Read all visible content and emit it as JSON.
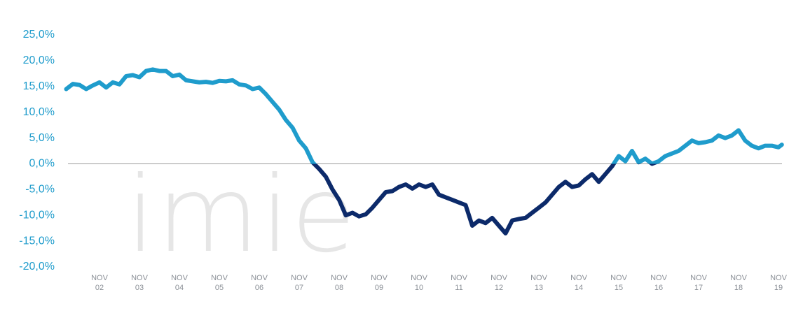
{
  "chart_data": {
    "type": "line",
    "watermark": "imie",
    "x": [
      -10,
      -8,
      -6,
      -4,
      -2,
      0,
      2,
      4,
      6,
      8,
      10,
      12,
      14,
      16,
      18,
      20,
      22,
      24,
      26,
      28,
      30,
      32,
      34,
      36,
      38,
      40,
      42,
      44,
      46,
      48,
      50,
      52,
      54,
      56,
      58,
      60,
      62,
      64,
      66,
      68,
      70,
      72,
      74,
      76,
      78,
      80,
      82,
      84,
      86,
      88,
      90,
      92,
      94,
      96,
      98,
      100,
      102,
      104,
      106,
      108,
      110,
      112,
      114,
      116,
      118,
      120,
      122,
      124,
      126,
      128,
      130,
      132,
      134,
      136,
      138,
      140,
      142,
      144,
      146,
      148,
      150,
      152,
      154,
      156,
      158,
      160,
      162,
      164,
      166,
      168,
      170,
      172,
      174,
      176,
      178,
      180,
      182,
      184,
      186,
      188,
      190,
      192,
      194,
      196,
      198,
      200,
      202,
      204,
      205
    ],
    "series": [
      {
        "positive_color": "#1f9ccc",
        "negative_color": "#0c2a6a",
        "values": [
          14.5,
          15.5,
          15.3,
          14.5,
          15.2,
          15.8,
          14.8,
          15.8,
          15.4,
          17,
          17.2,
          16.8,
          18,
          18.3,
          18,
          18,
          17,
          17.3,
          16.2,
          16,
          15.8,
          15.9,
          15.7,
          16.1,
          16,
          16.2,
          15.4,
          15.2,
          14.5,
          14.8,
          13.5,
          12,
          10.5,
          8.5,
          7,
          4.5,
          3,
          0.3,
          -1,
          -2.5,
          -5,
          -7,
          -10,
          -9.5,
          -10.2,
          -9.8,
          -8.5,
          -7,
          -5.5,
          -5.3,
          -4.5,
          -4,
          -4.8,
          -4,
          -4.5,
          -4,
          -6,
          -6.5,
          -7,
          -7.5,
          -8,
          -12,
          -11,
          -11.5,
          -10.5,
          -12,
          -13.5,
          -11,
          -10.7,
          -10.5,
          -9.5,
          -8.5,
          -7.5,
          -6,
          -4.5,
          -3.5,
          -4.5,
          -4.2,
          -3,
          -2,
          -3.5,
          -2,
          -0.5,
          1.5,
          0.5,
          2.5,
          0.3,
          1,
          0,
          0.5,
          1.5,
          2,
          2.5,
          3.5,
          4.5,
          4,
          4.2,
          4.5,
          5.5,
          5,
          5.5,
          6.5,
          4.5,
          3.5,
          3,
          3.5,
          3.5,
          3.2,
          3.7
        ]
      }
    ],
    "xlim": [
      -10,
      205
    ],
    "xticks": [
      {
        "value": 0,
        "label": [
          "NOV",
          "02"
        ]
      },
      {
        "value": 12,
        "label": [
          "NOV",
          "03"
        ]
      },
      {
        "value": 24,
        "label": [
          "NOV",
          "04"
        ]
      },
      {
        "value": 36,
        "label": [
          "NOV",
          "05"
        ]
      },
      {
        "value": 48,
        "label": [
          "NOV",
          "06"
        ]
      },
      {
        "value": 60,
        "label": [
          "NOV",
          "07"
        ]
      },
      {
        "value": 72,
        "label": [
          "NOV",
          "08"
        ]
      },
      {
        "value": 84,
        "label": [
          "NOV",
          "09"
        ]
      },
      {
        "value": 96,
        "label": [
          "NOV",
          "10"
        ]
      },
      {
        "value": 108,
        "label": [
          "NOV",
          "11"
        ]
      },
      {
        "value": 120,
        "label": [
          "NOV",
          "12"
        ]
      },
      {
        "value": 132,
        "label": [
          "NOV",
          "13"
        ]
      },
      {
        "value": 144,
        "label": [
          "NOV",
          "14"
        ]
      },
      {
        "value": 156,
        "label": [
          "NOV",
          "15"
        ]
      },
      {
        "value": 168,
        "label": [
          "NOV",
          "16"
        ]
      },
      {
        "value": 180,
        "label": [
          "NOV",
          "17"
        ]
      },
      {
        "value": 192,
        "label": [
          "NOV",
          "18"
        ]
      },
      {
        "value": 204,
        "label": [
          "NOV",
          "19"
        ]
      }
    ],
    "ylim": [
      -20,
      25
    ],
    "yticks": [
      {
        "value": -20,
        "label": "-20,0%"
      },
      {
        "value": -15,
        "label": "-15,0%"
      },
      {
        "value": -10,
        "label": "-10,0%"
      },
      {
        "value": -5,
        "label": "-5,0%"
      },
      {
        "value": 0,
        "label": "0,0%"
      },
      {
        "value": 5,
        "label": "5,0%"
      },
      {
        "value": 10,
        "label": "10,0%"
      },
      {
        "value": 15,
        "label": "15,0%"
      },
      {
        "value": 20,
        "label": "20,0%"
      },
      {
        "value": 25,
        "label": "25,0%"
      }
    ],
    "zero_line": true
  }
}
